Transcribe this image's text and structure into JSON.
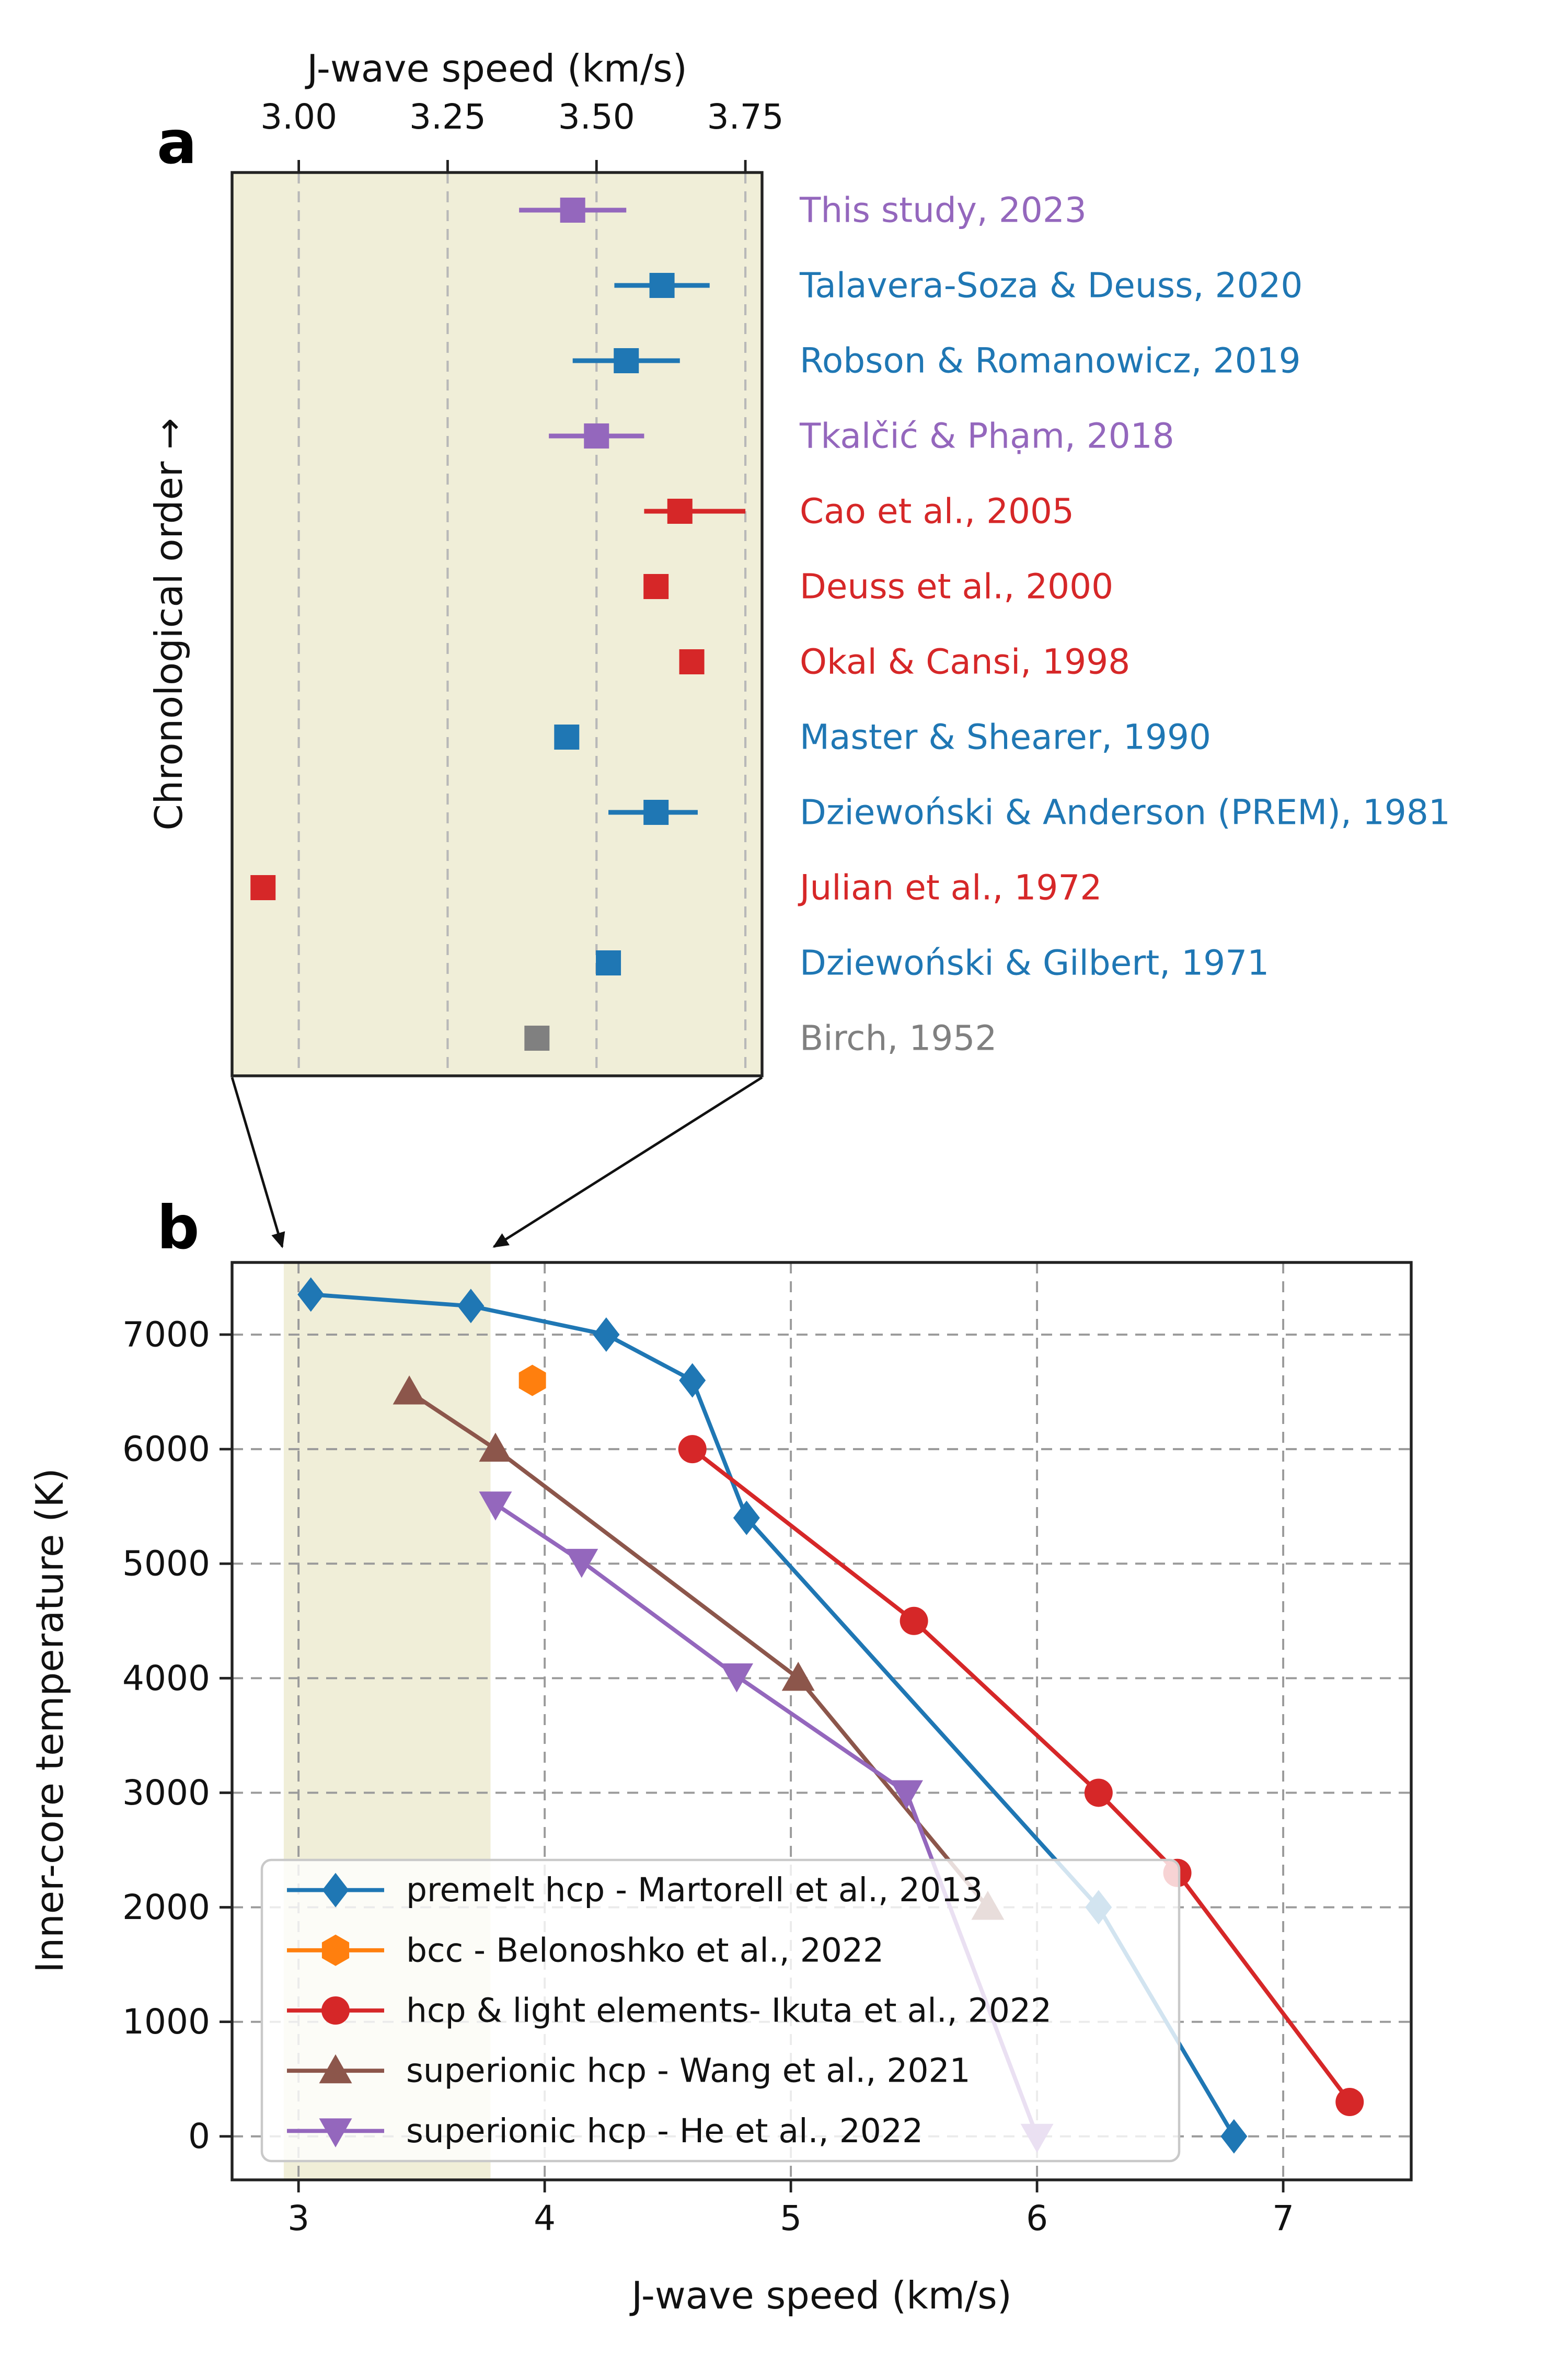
{
  "chart_data": [
    {
      "id": "panel_a",
      "type": "scatter",
      "panel_label": "a",
      "title": "J-wave speed (km/s)",
      "ylabel": "Chronological order →",
      "xlim": [
        2.888,
        3.778
      ],
      "xticks": [
        3.0,
        3.25,
        3.5,
        3.75
      ],
      "xtick_labels": [
        "3.00",
        "3.25",
        "3.50",
        "3.75"
      ],
      "background": "#f0eed8",
      "grid": "dashed-vertical",
      "marker": "square",
      "studies": [
        {
          "label": "This study, 2023",
          "color": "#9467bd",
          "value": 3.46,
          "err_minus": 0.09,
          "err_plus": 0.09
        },
        {
          "label": "Talavera-Soza & Deuss, 2020",
          "color": "#1f77b4",
          "value": 3.61,
          "err_minus": 0.08,
          "err_plus": 0.08
        },
        {
          "label": "Robson & Romanowicz, 2019",
          "color": "#1f77b4",
          "value": 3.55,
          "err_minus": 0.09,
          "err_plus": 0.09
        },
        {
          "label": "Tkalčić & Phạm, 2018",
          "color": "#9467bd",
          "value": 3.5,
          "err_minus": 0.08,
          "err_plus": 0.08
        },
        {
          "label": "Cao et al., 2005",
          "color": "#d62728",
          "value": 3.64,
          "err_minus": 0.06,
          "err_plus": 0.11
        },
        {
          "label": "Deuss et al., 2000",
          "color": "#d62728",
          "value": 3.6,
          "err_minus": 0,
          "err_plus": 0
        },
        {
          "label": "Okal & Cansi, 1998",
          "color": "#d62728",
          "value": 3.66,
          "err_minus": 0,
          "err_plus": 0
        },
        {
          "label": "Master & Shearer, 1990",
          "color": "#1f77b4",
          "value": 3.45,
          "err_minus": 0,
          "err_plus": 0
        },
        {
          "label": "Dziewoński & Anderson (PREM), 1981",
          "color": "#1f77b4",
          "value": 3.6,
          "err_minus": 0.08,
          "err_plus": 0.07
        },
        {
          "label": "Julian et al., 1972",
          "color": "#d62728",
          "value": 2.94,
          "err_minus": 0,
          "err_plus": 0
        },
        {
          "label": "Dziewoński & Gilbert, 1971",
          "color": "#1f77b4",
          "value": 3.52,
          "err_minus": 0,
          "err_plus": 0
        },
        {
          "label": "Birch, 1952",
          "color": "#808080",
          "value": 3.4,
          "err_minus": 0,
          "err_plus": 0
        }
      ]
    },
    {
      "id": "panel_b",
      "type": "line",
      "panel_label": "b",
      "xlabel": "J-wave speed (km/s)",
      "ylabel": "Inner-core temperature (K)",
      "xlim": [
        2.73,
        7.52
      ],
      "ylim": [
        -380,
        7630
      ],
      "xticks": [
        3,
        4,
        5,
        6,
        7
      ],
      "xtick_labels": [
        "3",
        "4",
        "5",
        "6",
        "7"
      ],
      "yticks": [
        0,
        1000,
        2000,
        3000,
        4000,
        5000,
        6000,
        7000
      ],
      "ytick_labels": [
        "0",
        "1000",
        "2000",
        "3000",
        "4000",
        "5000",
        "6000",
        "7000"
      ],
      "grid": "dashed",
      "legend_position": "lower left",
      "highlight_band": {
        "from": 2.94,
        "to": 3.78,
        "color": "#f0eed8"
      },
      "series": [
        {
          "name": "premelt hcp - Martorell et al., 2013",
          "color": "#1f77b4",
          "marker": "diamond",
          "points": [
            [
              3.05,
              7350
            ],
            [
              3.7,
              7250
            ],
            [
              4.25,
              7000
            ],
            [
              4.6,
              6600
            ],
            [
              4.82,
              5400
            ],
            [
              6.25,
              2000
            ],
            [
              6.8,
              0
            ]
          ]
        },
        {
          "name": "bcc - Belonoshko et al., 2022",
          "color": "#ff7f0e",
          "marker": "hexagon",
          "points": [
            [
              3.95,
              6600
            ]
          ]
        },
        {
          "name": "hcp & light elements- Ikuta et al., 2022",
          "color": "#d62728",
          "marker": "circle",
          "points": [
            [
              4.6,
              6000
            ],
            [
              5.5,
              4500
            ],
            [
              6.25,
              3000
            ],
            [
              6.57,
              2300
            ],
            [
              7.27,
              300
            ]
          ]
        },
        {
          "name": "superionic hcp - Wang et al., 2021",
          "color": "#8c564b",
          "marker": "triangle-up",
          "points": [
            [
              3.45,
              6500
            ],
            [
              3.8,
              6000
            ],
            [
              5.03,
              4000
            ],
            [
              5.8,
              2000
            ]
          ]
        },
        {
          "name": "superionic hcp - He et al., 2022",
          "color": "#9467bd",
          "marker": "triangle-down",
          "points": [
            [
              3.8,
              5520
            ],
            [
              4.15,
              5020
            ],
            [
              4.78,
              4020
            ],
            [
              5.47,
              3000
            ],
            [
              6.0,
              0
            ]
          ]
        }
      ]
    }
  ]
}
